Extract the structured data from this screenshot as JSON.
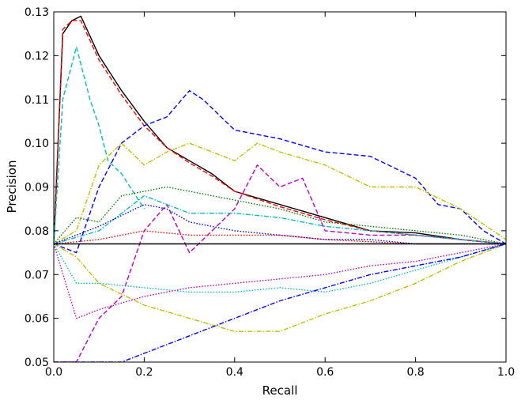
{
  "chart_data": {
    "type": "line",
    "title": "",
    "xlabel": "Recall",
    "ylabel": "Precision",
    "xlim": [
      0.0,
      1.0
    ],
    "ylim": [
      0.05,
      0.13
    ],
    "xticks": [
      "0.0",
      "0.2",
      "0.4",
      "0.6",
      "0.8",
      "1.0"
    ],
    "yticks": [
      "0.05",
      "0.06",
      "0.07",
      "0.08",
      "0.09",
      "0.10",
      "0.11",
      "0.12",
      "0.13"
    ],
    "grid": false,
    "legend": "none",
    "baseline": {
      "y": 0.077,
      "color": "#000000"
    },
    "series": [
      {
        "color": "#000000",
        "style": "solid",
        "x": [
          0.0,
          0.02,
          0.04,
          0.06,
          0.1,
          0.15,
          0.2,
          0.25,
          0.3,
          0.35,
          0.4,
          0.5,
          0.6,
          0.7,
          0.8,
          0.9,
          1.0
        ],
        "y": [
          0.077,
          0.125,
          0.128,
          0.129,
          0.12,
          0.112,
          0.105,
          0.099,
          0.096,
          0.093,
          0.089,
          0.086,
          0.083,
          0.08,
          0.0795,
          0.078,
          0.077
        ]
      },
      {
        "color": "#ff0000",
        "style": "dashed",
        "x": [
          0.0,
          0.02,
          0.04,
          0.06,
          0.1,
          0.15,
          0.2,
          0.25,
          0.3,
          0.35,
          0.4,
          0.5,
          0.6,
          0.7,
          0.8,
          0.9,
          1.0
        ],
        "y": [
          0.077,
          0.126,
          0.128,
          0.128,
          0.119,
          0.111,
          0.104,
          0.099,
          0.0955,
          0.0925,
          0.089,
          0.0855,
          0.0825,
          0.08,
          0.079,
          0.078,
          0.077
        ]
      },
      {
        "color": "#0000ff",
        "style": "dashed",
        "x": [
          0.0,
          0.05,
          0.1,
          0.15,
          0.2,
          0.25,
          0.3,
          0.33,
          0.4,
          0.5,
          0.6,
          0.7,
          0.8,
          0.85,
          0.9,
          0.95,
          1.0
        ],
        "y": [
          0.077,
          0.075,
          0.09,
          0.1,
          0.104,
          0.106,
          0.112,
          0.11,
          0.103,
          0.101,
          0.098,
          0.097,
          0.092,
          0.086,
          0.085,
          0.08,
          0.077
        ]
      },
      {
        "color": "#00bfbf",
        "style": "dashed",
        "x": [
          0.0,
          0.02,
          0.05,
          0.08,
          0.1,
          0.12,
          0.15,
          0.2
        ],
        "y": [
          0.077,
          0.11,
          0.122,
          0.11,
          0.104,
          0.096,
          0.093,
          0.085
        ]
      },
      {
        "color": "#bfbf00",
        "style": "dashdot",
        "x": [
          0.0,
          0.05,
          0.1,
          0.15,
          0.2,
          0.25,
          0.3,
          0.4,
          0.45,
          0.5,
          0.6,
          0.7,
          0.8,
          0.9,
          1.0
        ],
        "y": [
          0.077,
          0.08,
          0.095,
          0.1,
          0.095,
          0.098,
          0.1,
          0.096,
          0.1,
          0.098,
          0.095,
          0.09,
          0.09,
          0.085,
          0.078
        ]
      },
      {
        "color": "#bf00bf",
        "style": "dashed",
        "x": [
          0.0,
          0.05,
          0.1,
          0.15,
          0.2,
          0.25,
          0.3,
          0.4,
          0.45,
          0.5,
          0.55,
          0.6,
          0.7,
          0.8,
          0.9,
          1.0
        ],
        "y": [
          0.05,
          0.05,
          0.06,
          0.065,
          0.08,
          0.086,
          0.075,
          0.085,
          0.095,
          0.09,
          0.092,
          0.08,
          0.079,
          0.079,
          0.078,
          0.077
        ]
      },
      {
        "color": "#007f00",
        "style": "dotted",
        "x": [
          0.0,
          0.05,
          0.1,
          0.15,
          0.2,
          0.25,
          0.3,
          0.4,
          0.5,
          0.6,
          0.7,
          0.8,
          0.9,
          1.0
        ],
        "y": [
          0.077,
          0.083,
          0.082,
          0.088,
          0.089,
          0.09,
          0.089,
          0.087,
          0.085,
          0.082,
          0.081,
          0.08,
          0.079,
          0.077
        ]
      },
      {
        "color": "#00bfbf",
        "style": "dashdot",
        "x": [
          0.0,
          0.1,
          0.2,
          0.3,
          0.4,
          0.5,
          0.6,
          0.7,
          0.8,
          0.9,
          1.0
        ],
        "y": [
          0.077,
          0.08,
          0.088,
          0.084,
          0.084,
          0.083,
          0.081,
          0.08,
          0.079,
          0.078,
          0.077
        ]
      },
      {
        "color": "#0000ff",
        "style": "dotted",
        "x": [
          0.0,
          0.1,
          0.2,
          0.25,
          0.3,
          0.4,
          0.5,
          0.6,
          0.7,
          0.8,
          1.0
        ],
        "y": [
          0.077,
          0.081,
          0.086,
          0.085,
          0.082,
          0.08,
          0.079,
          0.078,
          0.078,
          0.077,
          0.077
        ]
      },
      {
        "color": "#ff0000",
        "style": "dotted",
        "x": [
          0.0,
          0.1,
          0.2,
          0.3,
          0.4,
          0.5,
          0.6,
          0.8,
          1.0
        ],
        "y": [
          0.077,
          0.078,
          0.08,
          0.079,
          0.079,
          0.079,
          0.078,
          0.077,
          0.077
        ]
      },
      {
        "color": "#bfbf00",
        "style": "dashdot",
        "x": [
          0.0,
          0.05,
          0.1,
          0.2,
          0.3,
          0.4,
          0.5,
          0.6,
          0.7,
          0.8,
          0.9,
          1.0
        ],
        "y": [
          0.077,
          0.074,
          0.068,
          0.063,
          0.06,
          0.057,
          0.057,
          0.061,
          0.064,
          0.068,
          0.073,
          0.077
        ]
      },
      {
        "color": "#00bfbf",
        "style": "dotted",
        "x": [
          0.0,
          0.05,
          0.1,
          0.2,
          0.3,
          0.4,
          0.5,
          0.6,
          0.7,
          0.8,
          0.9,
          1.0
        ],
        "y": [
          0.077,
          0.068,
          0.068,
          0.067,
          0.066,
          0.066,
          0.067,
          0.066,
          0.068,
          0.071,
          0.074,
          0.077
        ]
      },
      {
        "color": "#bf00bf",
        "style": "dotted",
        "x": [
          0.0,
          0.05,
          0.1,
          0.2,
          0.3,
          0.4,
          0.5,
          0.6,
          0.7,
          0.8,
          0.9,
          1.0
        ],
        "y": [
          0.077,
          0.06,
          0.062,
          0.065,
          0.067,
          0.068,
          0.069,
          0.07,
          0.072,
          0.073,
          0.075,
          0.077
        ]
      },
      {
        "color": "#0000ff",
        "style": "dashdot",
        "x": [
          0.0,
          0.15,
          0.2,
          0.3,
          0.4,
          0.5,
          0.6,
          0.7,
          0.8,
          0.9,
          1.0
        ],
        "y": [
          0.05,
          0.05,
          0.052,
          0.056,
          0.06,
          0.064,
          0.067,
          0.07,
          0.072,
          0.074,
          0.077
        ]
      }
    ]
  }
}
